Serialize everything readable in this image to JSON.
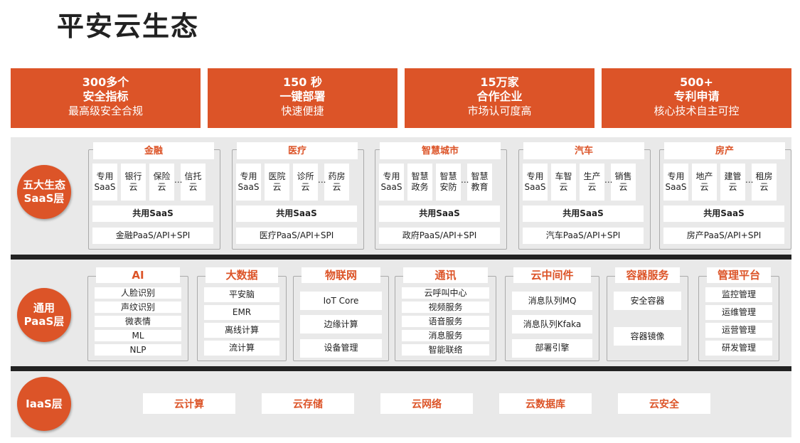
{
  "title": "平安云生态",
  "banners": [
    {
      "big": "300多个",
      "bold": "安全指标",
      "note": "最高级安全合规"
    },
    {
      "big": "150 秒",
      "bold": "一键部署",
      "note": "快速便捷"
    },
    {
      "big": "15万家",
      "bold": "合作企业",
      "note": "市场认可度高"
    },
    {
      "big": "500+",
      "bold": "专利申请",
      "note": "核心技术自主可控"
    }
  ],
  "accent": "#dc5428",
  "layers": {
    "saas": "五大生态 SaaS层",
    "paas": "通用 PaaS层",
    "iaas": "IaaS层"
  },
  "saas_groups": [
    {
      "name": "金融",
      "items": [
        "专用SaaS",
        "银行云",
        "保险云",
        "信托云"
      ],
      "shared": "共用SaaS",
      "paas": "金融PaaS/API+SPI"
    },
    {
      "name": "医疗",
      "items": [
        "专用SaaS",
        "医院云",
        "诊所云",
        "药房云"
      ],
      "shared": "共用SaaS",
      "paas": "医疗PaaS/API+SPI"
    },
    {
      "name": "智慧城市",
      "items": [
        "专用SaaS",
        "智慧政务",
        "智慧安防",
        "智慧教育"
      ],
      "shared": "共用SaaS",
      "paas": "政府PaaS/API+SPI"
    },
    {
      "name": "汽车",
      "items": [
        "专用SaaS",
        "车智云",
        "生产云",
        "销售云"
      ],
      "shared": "共用SaaS",
      "paas": "汽车PaaS/API+SPI"
    },
    {
      "name": "房产",
      "items": [
        "专用SaaS",
        "地产云",
        "建管云",
        "租房云"
      ],
      "shared": "共用SaaS",
      "paas": "房产PaaS/API+SPI"
    }
  ],
  "ellipsis": "...",
  "paas_groups": [
    {
      "name": "AI",
      "items": [
        "人脸识别",
        "声纹识别",
        "微表情",
        "ML",
        "NLP"
      ]
    },
    {
      "name": "大数据",
      "items": [
        "平安脑",
        "EMR",
        "离线计算",
        "流计算"
      ]
    },
    {
      "name": "物联网",
      "items": [
        "IoT Core",
        "边缘计算",
        "设备管理"
      ]
    },
    {
      "name": "通讯",
      "items": [
        "云呼叫中心",
        "视频服务",
        "语音服务",
        "消息服务",
        "智能联络"
      ]
    },
    {
      "name": "云中间件",
      "items": [
        "消息队列MQ",
        "消息队列Kfaka",
        "部署引擎"
      ]
    },
    {
      "name": "容器服务",
      "items": [
        "安全容器",
        "容器镜像"
      ]
    },
    {
      "name": "管理平台",
      "items": [
        "监控管理",
        "运维管理",
        "运营管理",
        "研发管理"
      ]
    }
  ],
  "iaas_items": [
    "云计算",
    "云存储",
    "云网络",
    "云数据库",
    "云安全"
  ]
}
